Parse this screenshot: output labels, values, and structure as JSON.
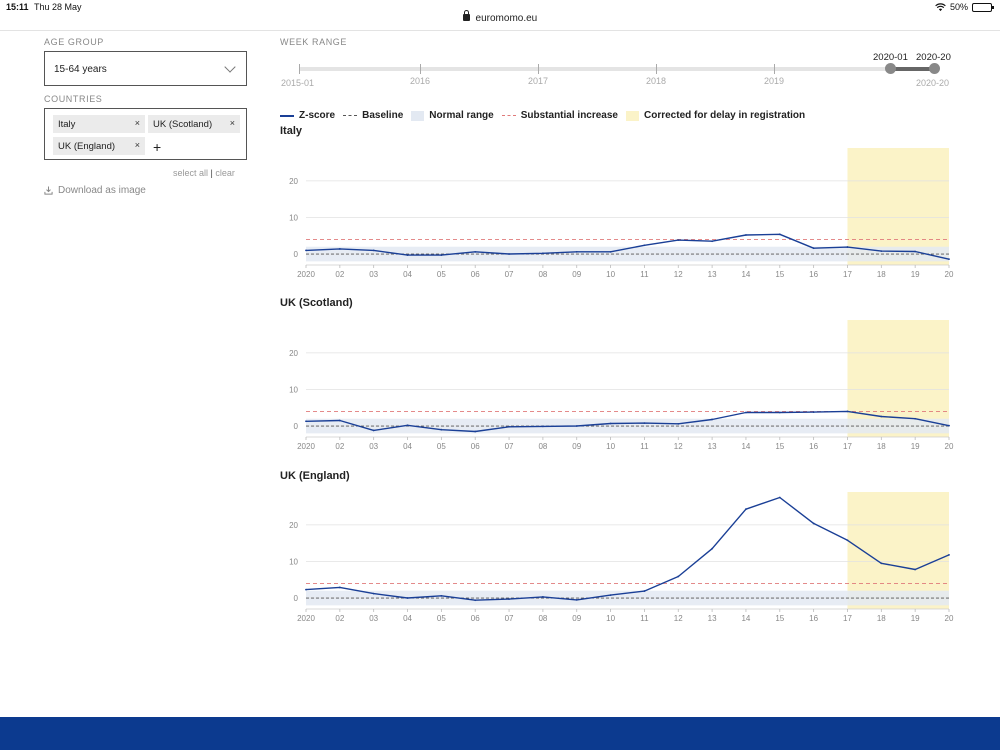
{
  "status": {
    "time": "15:11",
    "date": "Thu 28 May",
    "battery": "50%",
    "battery_level": 0.5
  },
  "browser": {
    "url": "euromomo.eu"
  },
  "filters": {
    "age_group_label": "AGE GROUP",
    "age_group_value": "15-64 years",
    "countries_label": "COUNTRIES",
    "countries": [
      {
        "label": "Italy"
      },
      {
        "label": "UK (Scotland)"
      },
      {
        "label": "UK (England)"
      }
    ],
    "chip_close": "×",
    "add": "+",
    "select_all": "select all",
    "separator": "|",
    "clear": "clear",
    "download": "Download as image"
  },
  "week_range": {
    "label": "WEEK RANGE",
    "start_label": "2015-01",
    "end_label": "2020-20",
    "selected_from": "2020-01",
    "selected_to": "2020-20",
    "years": [
      "2016",
      "2017",
      "2018",
      "2019"
    ]
  },
  "legend": {
    "zscore": "Z-score",
    "baseline": "Baseline",
    "normal": "Normal range",
    "substantial": "Substantial increase",
    "corrected": "Corrected for delay in registration"
  },
  "colors": {
    "zscore": "#1a3f96",
    "baseline": "#555555",
    "normal_range": "#e3e9f2",
    "substantial": "#e07a7a",
    "corrected": "#fbf3c8",
    "footer": "#0c3a8f"
  },
  "chart_data": [
    {
      "type": "line",
      "title": "Italy",
      "x": [
        "2020",
        "02",
        "03",
        "04",
        "05",
        "06",
        "07",
        "08",
        "09",
        "10",
        "11",
        "12",
        "13",
        "14",
        "15",
        "16",
        "17",
        "18",
        "19",
        "20"
      ],
      "yticks": [
        0,
        10,
        20
      ],
      "ylim": [
        -3,
        29
      ],
      "baseline": 0,
      "normal_range": [
        -2,
        2
      ],
      "substantial": 4,
      "corrected_from": "17",
      "series": [
        {
          "values": [
            1.0,
            1.4,
            1.0,
            -0.3,
            -0.3,
            0.6,
            0.0,
            0.2,
            0.6,
            0.6,
            2.4,
            3.8,
            3.5,
            5.2,
            5.4,
            1.6,
            1.9,
            0.8,
            0.7,
            -1.4
          ]
        }
      ]
    },
    {
      "type": "line",
      "title": "UK (Scotland)",
      "x": [
        "2020",
        "02",
        "03",
        "04",
        "05",
        "06",
        "07",
        "08",
        "09",
        "10",
        "11",
        "12",
        "13",
        "14",
        "15",
        "16",
        "17",
        "18",
        "19",
        "20"
      ],
      "yticks": [
        0,
        10,
        20
      ],
      "ylim": [
        -3,
        29
      ],
      "baseline": 0,
      "normal_range": [
        -2,
        2
      ],
      "substantial": 4,
      "corrected_from": "17",
      "series": [
        {
          "values": [
            1.3,
            1.5,
            -1.2,
            0.2,
            -1.0,
            -1.5,
            -0.2,
            -0.1,
            0.0,
            0.7,
            0.8,
            0.6,
            1.8,
            3.7,
            3.7,
            3.8,
            4.0,
            2.6,
            2.0,
            0.1
          ]
        }
      ]
    },
    {
      "type": "line",
      "title": "UK (England)",
      "x": [
        "2020",
        "02",
        "03",
        "04",
        "05",
        "06",
        "07",
        "08",
        "09",
        "10",
        "11",
        "12",
        "13",
        "14",
        "15",
        "16",
        "17",
        "18",
        "19",
        "20"
      ],
      "yticks": [
        0,
        10,
        20
      ],
      "ylim": [
        -3,
        29
      ],
      "baseline": 0,
      "normal_range": [
        -2,
        2
      ],
      "substantial": 4,
      "corrected_from": "17",
      "series": [
        {
          "values": [
            2.3,
            2.9,
            1.2,
            0.0,
            0.6,
            -0.6,
            -0.3,
            0.3,
            -0.5,
            0.8,
            1.9,
            5.9,
            13.5,
            24.3,
            27.5,
            20.4,
            15.8,
            9.5,
            7.8,
            11.8
          ]
        }
      ]
    }
  ]
}
